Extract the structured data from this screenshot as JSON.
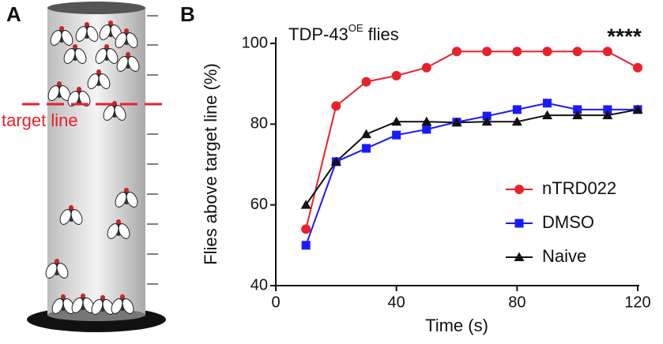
{
  "panel_a": {
    "label": "A",
    "target_label": "target line"
  },
  "chart_data": {
    "type": "line",
    "panel_label": "B",
    "title": "TDP-43",
    "title_superscript": "OE",
    "title_suffix": "flies",
    "annotation": "****",
    "x_label": "Time (s)",
    "y_label": "Flies above target line (%)",
    "x": [
      10,
      20,
      30,
      40,
      50,
      60,
      70,
      80,
      90,
      100,
      110,
      120
    ],
    "xlim": [
      0,
      120
    ],
    "xticks": [
      0,
      40,
      80,
      120
    ],
    "ylim": [
      40,
      100
    ],
    "yticks": [
      40,
      60,
      80,
      100
    ],
    "legend": "lower right",
    "series": [
      {
        "name": "nTRD022",
        "color": "#e8212a",
        "marker": "circle",
        "values": [
          54,
          84.5,
          90.5,
          92,
          94,
          98,
          98,
          98,
          98,
          98,
          98,
          94
        ]
      },
      {
        "name": "DMSO",
        "color": "#1a1aff",
        "marker": "square",
        "values": [
          50,
          70.7,
          74,
          77.3,
          78.7,
          80.5,
          82,
          83.6,
          85.2,
          83.6,
          83.6,
          83.6
        ]
      },
      {
        "name": "Naive",
        "color": "#111111",
        "marker": "triangle",
        "values": [
          60,
          70.7,
          77.5,
          80.6,
          80.6,
          80.4,
          80.6,
          80.6,
          82.2,
          82.2,
          82.2,
          83.6
        ]
      }
    ]
  }
}
